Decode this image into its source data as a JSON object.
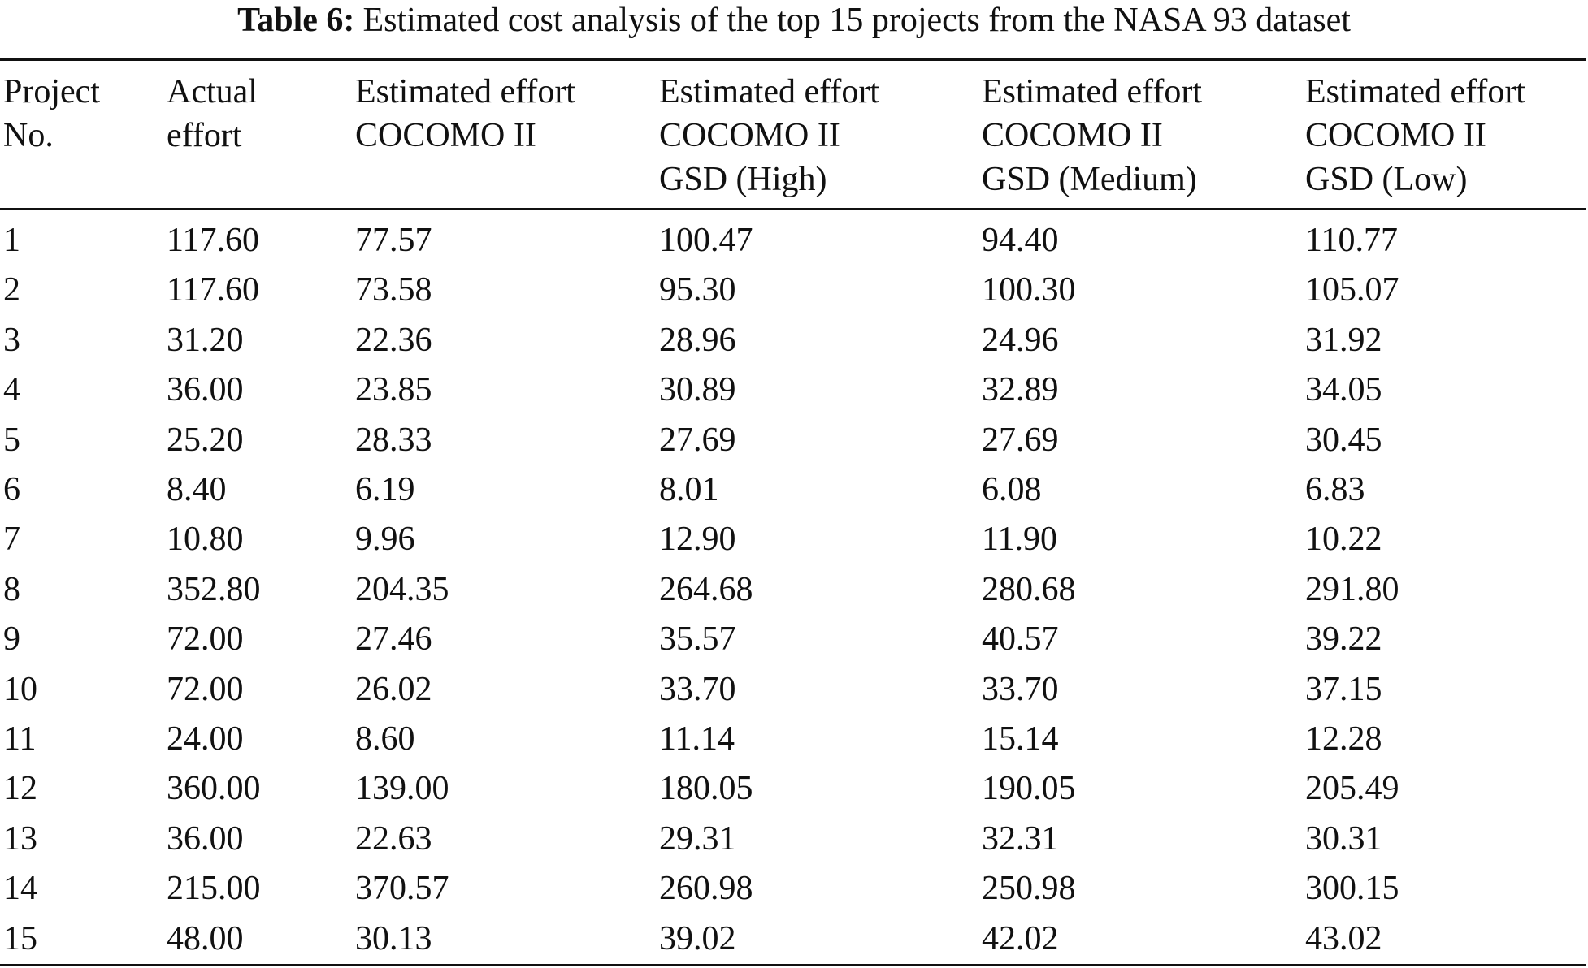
{
  "caption": {
    "label": "Table 6:",
    "text": "Estimated cost analysis of the top 15 projects from the NASA 93 dataset"
  },
  "header": [
    [
      "Project",
      "No."
    ],
    [
      "Actual",
      "effort"
    ],
    [
      "Estimated effort",
      "COCOMO II"
    ],
    [
      "Estimated effort",
      "COCOMO II",
      "GSD (High)"
    ],
    [
      "Estimated effort",
      "COCOMO II",
      "GSD (Medium)"
    ],
    [
      "Estimated effort",
      "COCOMO II",
      "GSD (Low)"
    ]
  ],
  "rows": [
    [
      "1",
      "117.60",
      "77.57",
      "100.47",
      "94.40",
      "110.77"
    ],
    [
      "2",
      "117.60",
      "73.58",
      "95.30",
      "100.30",
      "105.07"
    ],
    [
      "3",
      "31.20",
      "22.36",
      "28.96",
      "24.96",
      "31.92"
    ],
    [
      "4",
      "36.00",
      "23.85",
      "30.89",
      "32.89",
      "34.05"
    ],
    [
      "5",
      "25.20",
      "28.33",
      "27.69",
      "27.69",
      "30.45"
    ],
    [
      "6",
      "8.40",
      "6.19",
      "8.01",
      "6.08",
      "6.83"
    ],
    [
      "7",
      "10.80",
      "9.96",
      "12.90",
      "11.90",
      "10.22"
    ],
    [
      "8",
      "352.80",
      "204.35",
      "264.68",
      "280.68",
      "291.80"
    ],
    [
      "9",
      "72.00",
      "27.46",
      "35.57",
      "40.57",
      "39.22"
    ],
    [
      "10",
      "72.00",
      "26.02",
      "33.70",
      "33.70",
      "37.15"
    ],
    [
      "11",
      "24.00",
      "8.60",
      "11.14",
      "15.14",
      "12.28"
    ],
    [
      "12",
      "360.00",
      "139.00",
      "180.05",
      "190.05",
      "205.49"
    ],
    [
      "13",
      "36.00",
      "22.63",
      "29.31",
      "32.31",
      "30.31"
    ],
    [
      "14",
      "215.00",
      "370.57",
      "260.98",
      "250.98",
      "300.15"
    ],
    [
      "15",
      "48.00",
      "30.13",
      "39.02",
      "42.02",
      "43.02"
    ]
  ]
}
